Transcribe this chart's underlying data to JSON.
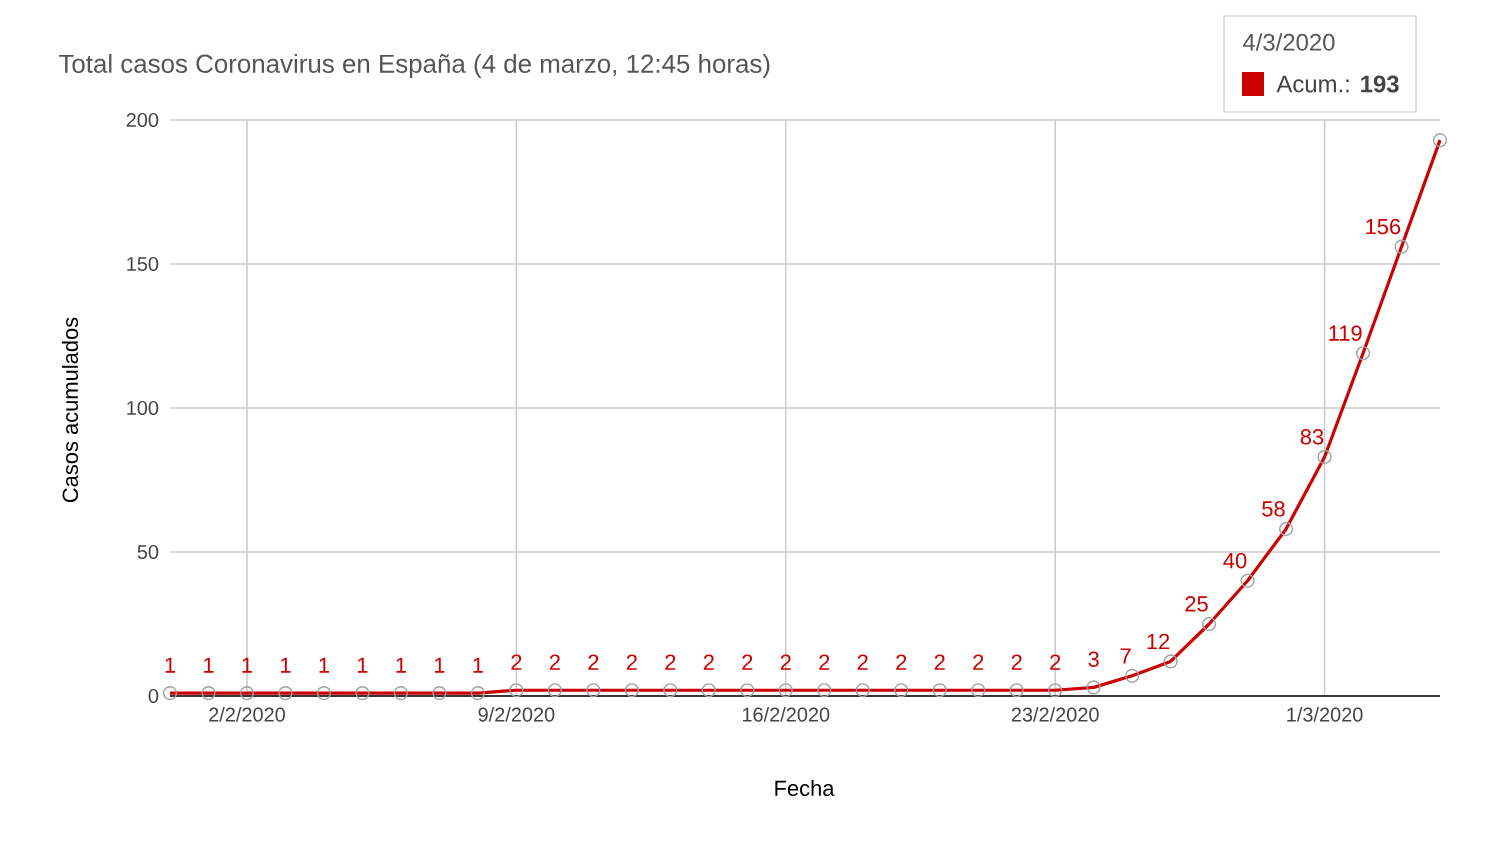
{
  "chart_data": {
    "type": "line",
    "title": "Total casos Coronavirus en España (4 de marzo, 12:45 horas)",
    "xlabel": "Fecha",
    "ylabel": "Casos acumulados",
    "x": [
      "2020-01-31",
      "2020-02-01",
      "2020-02-02",
      "2020-02-03",
      "2020-02-04",
      "2020-02-05",
      "2020-02-06",
      "2020-02-07",
      "2020-02-08",
      "2020-02-09",
      "2020-02-10",
      "2020-02-11",
      "2020-02-12",
      "2020-02-13",
      "2020-02-14",
      "2020-02-15",
      "2020-02-16",
      "2020-02-17",
      "2020-02-18",
      "2020-02-19",
      "2020-02-20",
      "2020-02-21",
      "2020-02-22",
      "2020-02-23",
      "2020-02-24",
      "2020-02-25",
      "2020-02-26",
      "2020-02-27",
      "2020-02-28",
      "2020-02-29",
      "2020-03-01",
      "2020-03-02",
      "2020-03-03",
      "2020-03-04"
    ],
    "series": [
      {
        "color": "#cc0000",
        "values": [
          1,
          1,
          1,
          1,
          1,
          1,
          1,
          1,
          1,
          2,
          2,
          2,
          2,
          2,
          2,
          2,
          2,
          2,
          2,
          2,
          2,
          2,
          2,
          2,
          3,
          7,
          12,
          25,
          40,
          58,
          83,
          119,
          156,
          193
        ],
        "value_labels": [
          "1",
          "1",
          "1",
          "1",
          "1",
          "1",
          "1",
          "1",
          "1",
          "2",
          "2",
          "2",
          "2",
          "2",
          "2",
          "2",
          "2",
          "2",
          "2",
          "2",
          "2",
          "2",
          "2",
          "2",
          "3",
          "7",
          "12",
          "25",
          "40",
          "58",
          "83",
          "119",
          "156",
          null
        ]
      }
    ],
    "xlim": [
      "2020-01-31",
      "2020-03-04"
    ],
    "ylim": [
      0,
      200
    ],
    "yticks": [
      0,
      50,
      100,
      150,
      200
    ],
    "xticks": [
      {
        "value": "2020-02-02",
        "label": "2/2/2020"
      },
      {
        "value": "2020-02-09",
        "label": "9/2/2020"
      },
      {
        "value": "2020-02-16",
        "label": "16/2/2020"
      },
      {
        "value": "2020-02-23",
        "label": "23/2/2020"
      },
      {
        "value": "2020-03-01",
        "label": "1/3/2020"
      }
    ],
    "grid": true,
    "marker": "circle",
    "line_style": "solid",
    "annotations": [
      "4/3/2020",
      "Acum.: **193**"
    ]
  }
}
